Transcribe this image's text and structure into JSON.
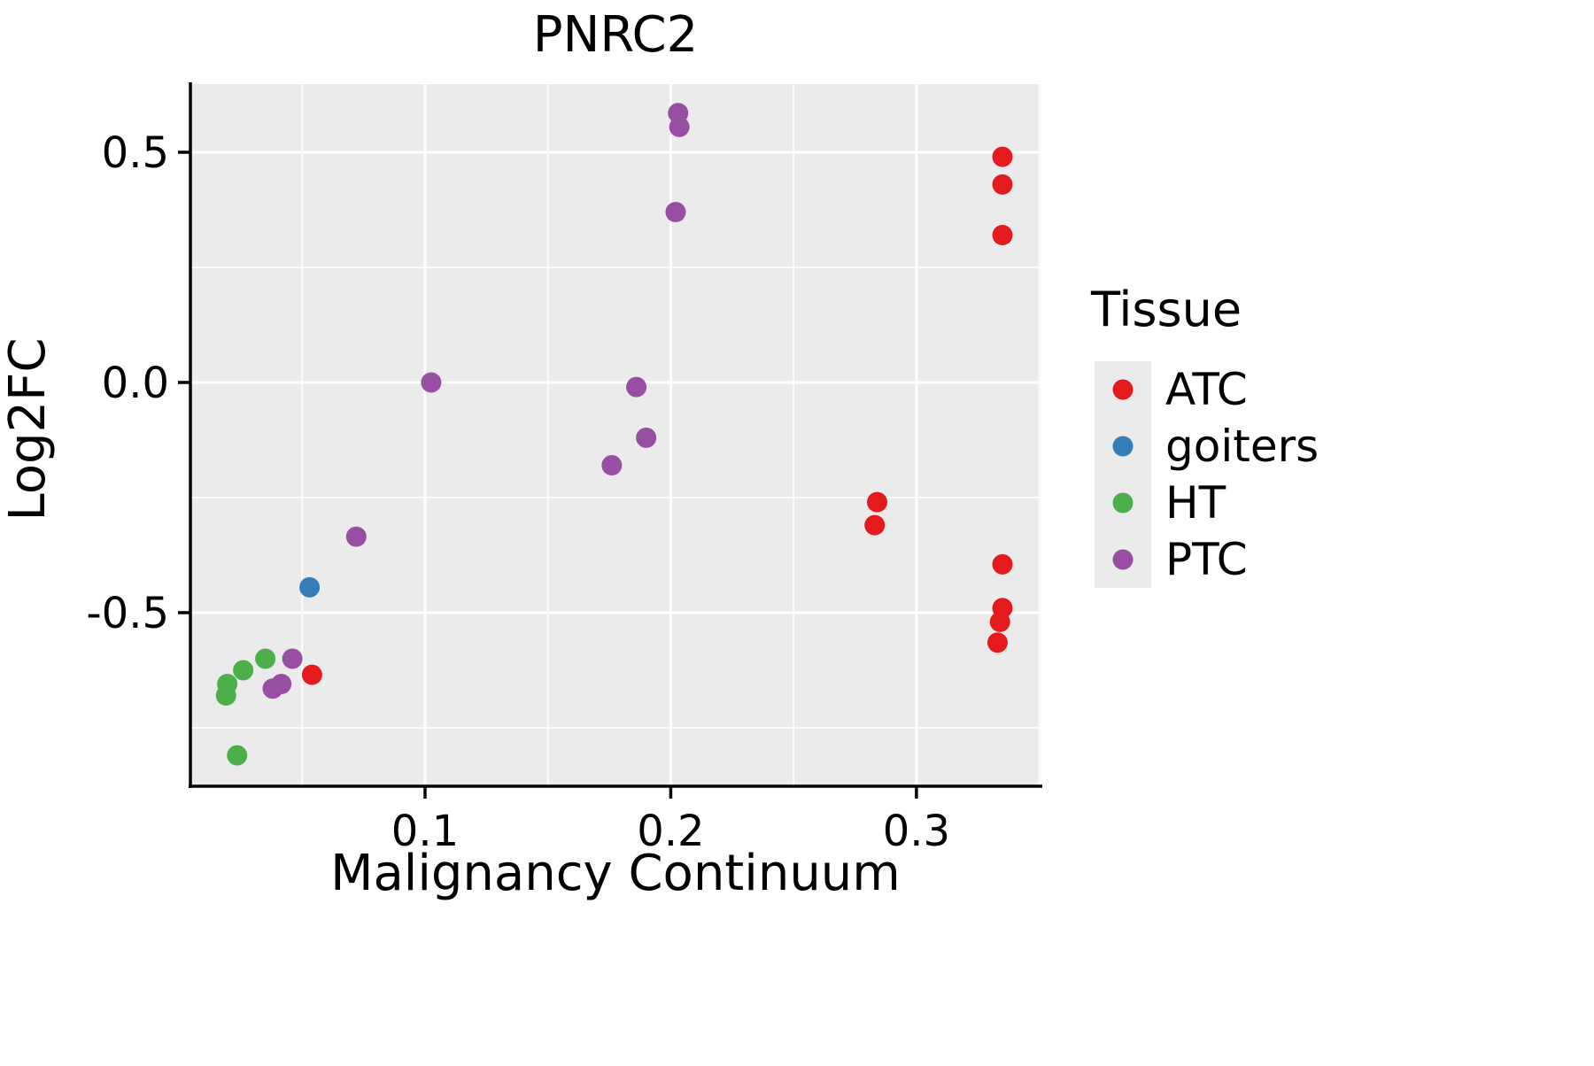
{
  "chart_data": {
    "type": "scatter",
    "title": "PNRC2",
    "xlabel": "Malignancy Continuum",
    "ylabel": "Log2FC",
    "xlim": [
      0.0045,
      0.3505
    ],
    "ylim": [
      -0.877,
      0.648
    ],
    "panel_bg": "#EBEBEB",
    "grid_color": "#FFFFFF",
    "axis_color": "#000000",
    "x_major_ticks": [
      {
        "value": 0.1,
        "label": "0.1"
      },
      {
        "value": 0.2,
        "label": "0.2"
      },
      {
        "value": 0.3,
        "label": "0.3"
      }
    ],
    "y_major_ticks": [
      {
        "value": 0.5,
        "label": "0.5"
      },
      {
        "value": 0.0,
        "label": "0.0"
      },
      {
        "value": -0.5,
        "label": "-0.5"
      }
    ],
    "x_minor_ticks": [
      0.05,
      0.15,
      0.25,
      0.35
    ],
    "y_minor_ticks": [
      0.25,
      -0.25,
      -0.75
    ],
    "legend": {
      "title": "Tissue",
      "key_bg": "#EBEBEB"
    },
    "series": [
      {
        "name": "ATC",
        "color": "#E41A1C",
        "points": [
          [
            0.335,
            0.49
          ],
          [
            0.335,
            0.43
          ],
          [
            0.335,
            0.32
          ],
          [
            0.284,
            -0.26
          ],
          [
            0.283,
            -0.31
          ],
          [
            0.335,
            -0.395
          ],
          [
            0.335,
            -0.49
          ],
          [
            0.334,
            -0.52
          ],
          [
            0.333,
            -0.565
          ],
          [
            0.054,
            -0.635
          ]
        ]
      },
      {
        "name": "goiters",
        "color": "#377EB8",
        "points": [
          [
            0.053,
            -0.445
          ]
        ]
      },
      {
        "name": "HT",
        "color": "#4DAF4A",
        "points": [
          [
            0.035,
            -0.6
          ],
          [
            0.026,
            -0.625
          ],
          [
            0.0195,
            -0.655
          ],
          [
            0.019,
            -0.68
          ],
          [
            0.0235,
            -0.81
          ]
        ]
      },
      {
        "name": "PTC",
        "color": "#984EA3",
        "points": [
          [
            0.203,
            0.585
          ],
          [
            0.2035,
            0.555
          ],
          [
            0.202,
            0.37
          ],
          [
            0.1025,
            0.0
          ],
          [
            0.186,
            -0.01
          ],
          [
            0.19,
            -0.12
          ],
          [
            0.176,
            -0.18
          ],
          [
            0.072,
            -0.335
          ],
          [
            0.046,
            -0.6
          ],
          [
            0.0415,
            -0.655
          ],
          [
            0.038,
            -0.665
          ]
        ]
      }
    ]
  }
}
